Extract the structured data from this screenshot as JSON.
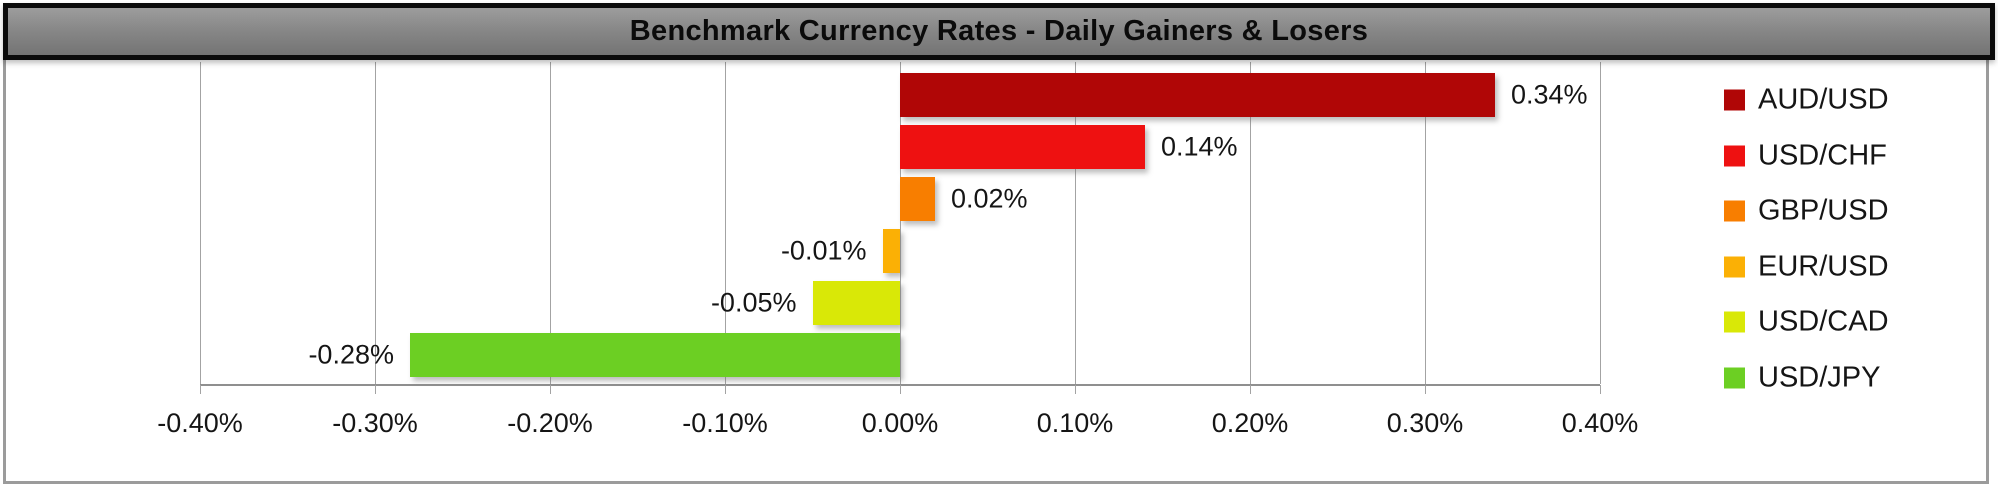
{
  "title": "Benchmark Currency Rates - Daily Gainers & Losers",
  "chart_data": {
    "type": "bar",
    "orientation": "horizontal",
    "title": "Benchmark Currency Rates - Daily Gainers & Losers",
    "xlim": [
      -0.4,
      0.4
    ],
    "x_ticks": [
      "-0.40%",
      "-0.30%",
      "-0.20%",
      "-0.10%",
      "0.00%",
      "0.10%",
      "0.20%",
      "0.30%",
      "0.40%"
    ],
    "grid": true,
    "legend_position": "right",
    "series": [
      {
        "name": "AUD/USD",
        "value": 0.34,
        "label": "0.34%",
        "color": "#B00606"
      },
      {
        "name": "USD/CHF",
        "value": 0.14,
        "label": "0.14%",
        "color": "#EE1111"
      },
      {
        "name": "GBP/USD",
        "value": 0.02,
        "label": "0.02%",
        "color": "#F87E00"
      },
      {
        "name": "EUR/USD",
        "value": -0.01,
        "label": "-0.01%",
        "color": "#FBB005"
      },
      {
        "name": "USD/CAD",
        "value": -0.05,
        "label": "-0.05%",
        "color": "#D9E807"
      },
      {
        "name": "USD/JPY",
        "value": -0.28,
        "label": "-0.28%",
        "color": "#6CCF23"
      }
    ]
  },
  "colors": {
    "background": "#FFFFFF",
    "title_bar_bg": "#828282",
    "title_bar_border": "#0B0B0B",
    "frame_border": "#9B9B9B",
    "gridline": "#A3A3A3",
    "text": "#151515"
  }
}
